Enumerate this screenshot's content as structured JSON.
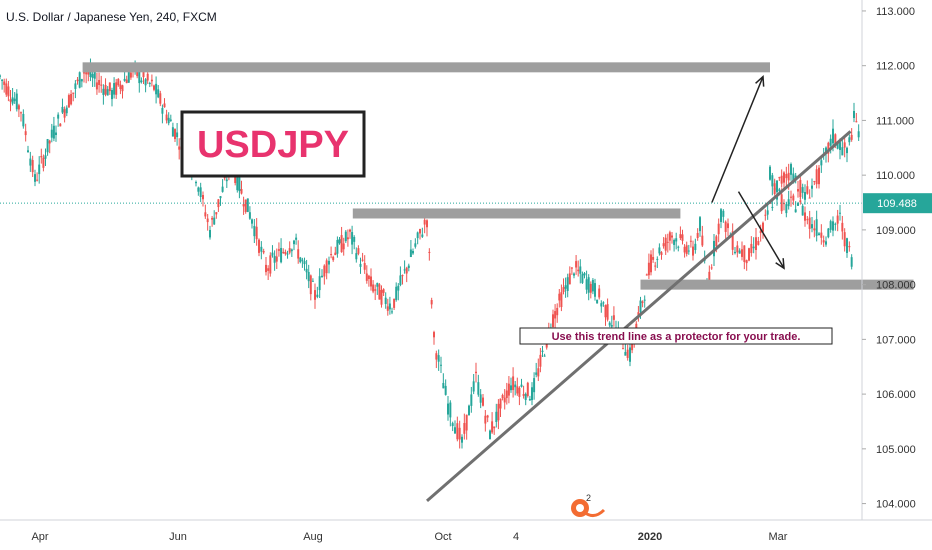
{
  "chart_data": {
    "type": "candlestick",
    "title": "U.S. Dollar / Japanese Yen, 240, FXCM",
    "symbol_label": "USDJPY",
    "annotation": "Use this trend line as a protector for your trade.",
    "current_price": "109.488",
    "y_ticks": [
      "113.000",
      "112.000",
      "111.000",
      "110.000",
      "109.000",
      "108.000",
      "107.000",
      "106.000",
      "105.000",
      "104.000"
    ],
    "ylim": [
      103.7,
      113.2
    ],
    "x_ticks": [
      "Apr",
      "Jun",
      "Aug",
      "Oct",
      "4",
      "2020",
      "Mar"
    ],
    "x_tick_bold": [
      false,
      false,
      false,
      false,
      false,
      true,
      false
    ],
    "grid": false,
    "colors": {
      "up": "#26a69a",
      "down": "#ef5350",
      "label": "#e8336e",
      "price_tag": "#26a69a",
      "level": "#9e9e9e",
      "trend": "#707070",
      "annot_text": "#880e4f"
    },
    "price_path": [
      [
        0,
        111.8
      ],
      [
        0.03,
        111.2
      ],
      [
        0.05,
        109.9
      ],
      [
        0.08,
        110.9
      ],
      [
        0.12,
        111.9
      ],
      [
        0.16,
        111.5
      ],
      [
        0.19,
        111.9
      ],
      [
        0.22,
        111.6
      ],
      [
        0.25,
        110.8
      ],
      [
        0.28,
        110.0
      ],
      [
        0.3,
        109.0
      ],
      [
        0.33,
        110.2
      ],
      [
        0.36,
        109.2
      ],
      [
        0.38,
        108.3
      ],
      [
        0.42,
        108.8
      ],
      [
        0.45,
        107.8
      ],
      [
        0.47,
        108.5
      ],
      [
        0.5,
        108.9
      ],
      [
        0.53,
        108.0
      ],
      [
        0.56,
        107.6
      ],
      [
        0.59,
        108.6
      ],
      [
        0.61,
        109.2
      ],
      [
        0.62,
        107.0
      ],
      [
        0.64,
        105.8
      ],
      [
        0.66,
        105.1
      ],
      [
        0.68,
        106.3
      ],
      [
        0.7,
        105.3
      ],
      [
        0.73,
        106.2
      ],
      [
        0.76,
        106.0
      ],
      [
        0.79,
        107.4
      ],
      [
        0.82,
        108.3
      ],
      [
        0.85,
        107.9
      ],
      [
        0.88,
        107.2
      ],
      [
        0.9,
        106.7
      ],
      [
        0.93,
        108.4
      ],
      [
        0.96,
        108.9
      ],
      [
        0.99,
        108.6
      ],
      [
        1.0,
        109.1
      ],
      [
        1.01,
        108.0
      ],
      [
        1.03,
        109.3
      ],
      [
        1.05,
        108.7
      ],
      [
        1.07,
        108.5
      ],
      [
        1.09,
        109.0
      ],
      [
        1.11,
        109.8
      ],
      [
        1.13,
        110.1
      ],
      [
        1.15,
        109.6
      ],
      [
        1.17,
        110.0
      ],
      [
        1.19,
        110.7
      ],
      [
        1.21,
        110.4
      ],
      [
        1.22,
        111.0
      ],
      [
        1.23,
        110.8
      ]
    ],
    "price_path_2": [
      [
        1.1,
        110.0
      ],
      [
        1.12,
        109.4
      ],
      [
        1.14,
        109.5
      ],
      [
        1.16,
        109.1
      ],
      [
        1.18,
        108.9
      ],
      [
        1.2,
        109.2
      ],
      [
        1.21,
        108.7
      ],
      [
        1.22,
        108.4
      ]
    ],
    "levels": [
      {
        "price": 111.97,
        "x1": 0.118,
        "x2": 1.1
      },
      {
        "price": 109.3,
        "x1": 0.504,
        "x2": 0.972
      },
      {
        "price": 108.0,
        "x1": 0.915,
        "x2": 1.305
      }
    ],
    "trend_line": {
      "x1": 0.61,
      "p1": 104.05,
      "x2": 1.215,
      "p2": 110.8
    },
    "arrows": [
      {
        "x1": 1.017,
        "p1": 109.5,
        "x2": 1.09,
        "p2": 111.8
      },
      {
        "x1": 1.055,
        "p1": 109.7,
        "x2": 1.12,
        "p2": 108.3
      }
    ]
  }
}
